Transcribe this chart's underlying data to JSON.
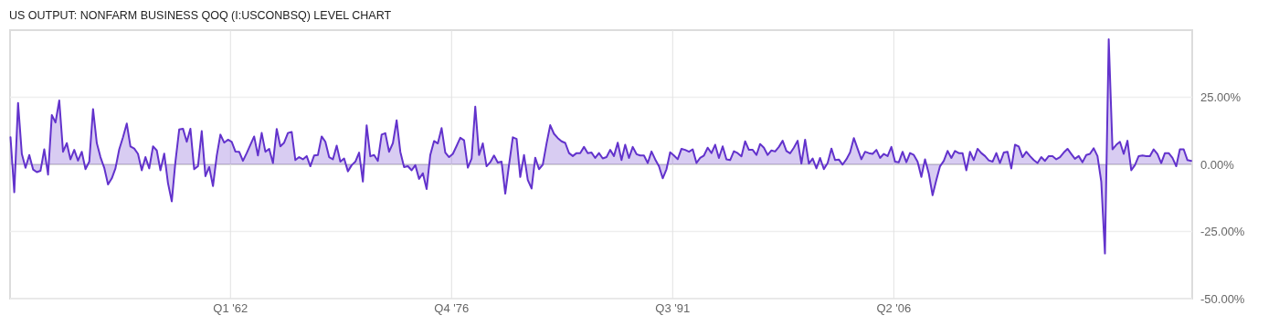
{
  "chart_data": {
    "type": "area",
    "title": "US OUTPUT: NONFARM BUSINESS QOQ (I:USCONBSQ) LEVEL CHART",
    "x": [
      "1947-05",
      "1947-08",
      "1947-11",
      "1948-02",
      "1948-05",
      "1948-08",
      "1948-11",
      "1949-02",
      "1949-05",
      "1949-08",
      "1949-11",
      "1950-02",
      "1950-05",
      "1950-08",
      "1950-11",
      "1951-02",
      "1951-05",
      "1951-08",
      "1951-11",
      "1952-02",
      "1952-05",
      "1952-08",
      "1952-11",
      "1953-02",
      "1953-05",
      "1953-08",
      "1953-11",
      "1954-02",
      "1954-05",
      "1954-08",
      "1954-11",
      "1955-02",
      "1955-05",
      "1955-08",
      "1955-11",
      "1956-02",
      "1956-05",
      "1956-08",
      "1956-11",
      "1957-02",
      "1957-05",
      "1957-08",
      "1957-11",
      "1958-02",
      "1958-05",
      "1958-08",
      "1958-11",
      "1959-02",
      "1959-05",
      "1959-08",
      "1959-11",
      "1960-02",
      "1960-05",
      "1960-08",
      "1960-11",
      "1961-02",
      "1961-05",
      "1961-08",
      "1961-11",
      "1962-02",
      "1962-05",
      "1962-08",
      "1962-11",
      "1963-02",
      "1963-05",
      "1963-08",
      "1963-11",
      "1964-02",
      "1964-05",
      "1964-08",
      "1964-11",
      "1965-02",
      "1965-05",
      "1965-08",
      "1965-11",
      "1966-02",
      "1966-05",
      "1966-08",
      "1966-11",
      "1967-02",
      "1967-05",
      "1967-08",
      "1967-11",
      "1968-02",
      "1968-05",
      "1968-08",
      "1968-11",
      "1969-02",
      "1969-05",
      "1969-08",
      "1969-11",
      "1970-02",
      "1970-05",
      "1970-08",
      "1970-11",
      "1971-02",
      "1971-05",
      "1971-08",
      "1971-11",
      "1972-02",
      "1972-05",
      "1972-08",
      "1972-11",
      "1973-02",
      "1973-05",
      "1973-08",
      "1973-11",
      "1974-02",
      "1974-05",
      "1974-08",
      "1974-11",
      "1975-02",
      "1975-05",
      "1975-08",
      "1975-11",
      "1976-02",
      "1976-05",
      "1976-08",
      "1976-11",
      "1977-02",
      "1977-05",
      "1977-08",
      "1977-11",
      "1978-02",
      "1978-05",
      "1978-08",
      "1978-11",
      "1979-02",
      "1979-05",
      "1979-08",
      "1979-11",
      "1980-02",
      "1980-05",
      "1980-08",
      "1980-11",
      "1981-02",
      "1981-05",
      "1981-08",
      "1981-11",
      "1982-02",
      "1982-05",
      "1982-08",
      "1982-11",
      "1983-02",
      "1983-05",
      "1983-08",
      "1983-11",
      "1984-02",
      "1984-05",
      "1984-08",
      "1984-11",
      "1985-02",
      "1985-05",
      "1985-08",
      "1985-11",
      "1986-02",
      "1986-05",
      "1986-08",
      "1986-11",
      "1987-02",
      "1987-05",
      "1987-08",
      "1987-11",
      "1988-02",
      "1988-05",
      "1988-08",
      "1988-11",
      "1989-02",
      "1989-05",
      "1989-08",
      "1989-11",
      "1990-02",
      "1990-05",
      "1990-08",
      "1990-11",
      "1991-02",
      "1991-05",
      "1991-08",
      "1991-11",
      "1992-02",
      "1992-05",
      "1992-08",
      "1992-11",
      "1993-02",
      "1993-05",
      "1993-08",
      "1993-11",
      "1994-02",
      "1994-05",
      "1994-08",
      "1994-11",
      "1995-02",
      "1995-05",
      "1995-08",
      "1995-11",
      "1996-02",
      "1996-05",
      "1996-08",
      "1996-11",
      "1997-02",
      "1997-05",
      "1997-08",
      "1997-11",
      "1998-02",
      "1998-05",
      "1998-08",
      "1998-11",
      "1999-02",
      "1999-05",
      "1999-08",
      "1999-11",
      "2000-02",
      "2000-05",
      "2000-08",
      "2000-11",
      "2001-02",
      "2001-05",
      "2001-08",
      "2001-11",
      "2002-02",
      "2002-05",
      "2002-08",
      "2002-11",
      "2003-02",
      "2003-05",
      "2003-08",
      "2003-11",
      "2004-02",
      "2004-05",
      "2004-08",
      "2004-11",
      "2005-02",
      "2005-05",
      "2005-08",
      "2005-11",
      "2006-02",
      "2006-05",
      "2006-08",
      "2006-11",
      "2007-02",
      "2007-05",
      "2007-08",
      "2007-11",
      "2008-02",
      "2008-05",
      "2008-08",
      "2008-11",
      "2009-02",
      "2009-05",
      "2009-08",
      "2009-11",
      "2010-02",
      "2010-05",
      "2010-08",
      "2010-11",
      "2011-02",
      "2011-05",
      "2011-08",
      "2011-11",
      "2012-02",
      "2012-05",
      "2012-08",
      "2012-11",
      "2013-02",
      "2013-05",
      "2013-08",
      "2013-11",
      "2014-02",
      "2014-05",
      "2014-08",
      "2014-11",
      "2015-02",
      "2015-05",
      "2015-08",
      "2015-11",
      "2016-02",
      "2016-05",
      "2016-08",
      "2016-11",
      "2017-02",
      "2017-05",
      "2017-08",
      "2017-11",
      "2018-02",
      "2018-05",
      "2018-08",
      "2018-11",
      "2019-02",
      "2019-05",
      "2019-08",
      "2019-11",
      "2020-02",
      "2020-05",
      "2020-08",
      "2020-11",
      "2021-02",
      "2021-05",
      "2021-08",
      "2021-11",
      "2022-02",
      "2022-05",
      "2022-08",
      "2022-11",
      "2023-02",
      "2023-05",
      "2023-08",
      "2023-11",
      "2024-02",
      "2024-05",
      "2024-08",
      "2024-11",
      "2025-02",
      "2025-05",
      "2025-08",
      "2025-11",
      "2026-02"
    ],
    "series": [
      {
        "color": "#6232cc",
        "values": [
          10.1,
          -10.4,
          22.9,
          3.9,
          -1.3,
          3.5,
          -1.9,
          -2.9,
          -2.4,
          5.6,
          -3.8,
          18.4,
          15.6,
          23.8,
          4.7,
          7.9,
          1.9,
          5.4,
          1.4,
          4.7,
          -1.8,
          1.0,
          20.6,
          7.9,
          2.7,
          -1.3,
          -7.5,
          -5.2,
          -1.5,
          5.6,
          10.1,
          15.2,
          6.7,
          5.9,
          3.9,
          -2.2,
          2.7,
          -1.5,
          6.7,
          5.2,
          -2.2,
          4.0,
          -7.0,
          -13.8,
          1.0,
          13.0,
          13.3,
          8.4,
          13.3,
          -1.8,
          -0.7,
          12.4,
          -4.4,
          -1.0,
          -8.1,
          3.3,
          11.1,
          8.1,
          9.2,
          8.4,
          4.8,
          4.7,
          1.3,
          4.2,
          7.3,
          10.4,
          3.3,
          11.7,
          4.7,
          5.8,
          0.5,
          13.2,
          6.7,
          8.1,
          11.7,
          12.1,
          1.6,
          2.7,
          1.9,
          3.1,
          -0.7,
          3.3,
          3.5,
          10.4,
          8.4,
          2.7,
          1.9,
          7.0,
          1.0,
          2.2,
          -2.6,
          -0.3,
          1.0,
          4.4,
          -6.4,
          14.5,
          3.0,
          3.5,
          1.3,
          11.1,
          11.6,
          4.7,
          7.9,
          16.4,
          4.7,
          -1.0,
          -0.7,
          -2.2,
          -0.3,
          -5.4,
          -3.3,
          -9.2,
          3.5,
          8.7,
          7.8,
          13.5,
          4.4,
          2.7,
          3.9,
          6.9,
          9.9,
          9.0,
          -1.2,
          2.2,
          21.5,
          3.5,
          7.8,
          -0.7,
          0.8,
          3.3,
          0.7,
          1.0,
          -10.9,
          -0.1,
          10.1,
          9.5,
          -4.7,
          3.5,
          -5.8,
          -9.0,
          2.5,
          -1.8,
          -0.1,
          7.8,
          14.6,
          11.4,
          9.8,
          8.6,
          8.0,
          4.2,
          3.1,
          4.2,
          4.2,
          6.5,
          4.2,
          4.4,
          2.4,
          4.2,
          2.2,
          2.7,
          5.4,
          3.1,
          8.1,
          1.6,
          7.3,
          2.4,
          6.5,
          3.8,
          3.3,
          3.3,
          0.5,
          4.8,
          1.9,
          -0.7,
          -5.2,
          -1.8,
          4.5,
          3.3,
          1.9,
          5.8,
          5.4,
          4.7,
          5.6,
          0.5,
          2.4,
          3.3,
          6.2,
          4.2,
          7.3,
          2.4,
          6.7,
          1.9,
          1.6,
          4.9,
          4.2,
          3.0,
          8.6,
          5.4,
          5.4,
          3.5,
          7.6,
          6.2,
          3.5,
          5.2,
          4.8,
          6.5,
          8.8,
          5.0,
          4.1,
          6.2,
          8.8,
          0.3,
          9.2,
          0.3,
          2.2,
          -1.5,
          2.4,
          -1.8,
          0.5,
          5.9,
          1.6,
          1.8,
          -0.1,
          1.9,
          4.4,
          9.8,
          5.8,
          1.9,
          4.7,
          4.2,
          3.9,
          5.4,
          2.4,
          3.9,
          3.1,
          6.5,
          1.0,
          0.8,
          4.7,
          0.8,
          4.2,
          3.5,
          1.0,
          -4.7,
          1.9,
          -3.5,
          -11.5,
          -5.8,
          -0.7,
          1.3,
          5.0,
          2.4,
          5.0,
          4.2,
          4.2,
          -2.2,
          4.7,
          1.6,
          5.8,
          4.2,
          3.1,
          1.5,
          1.0,
          4.2,
          0.5,
          4.4,
          4.7,
          -1.5,
          7.3,
          6.7,
          2.7,
          4.7,
          3.1,
          1.6,
          0.5,
          2.7,
          1.3,
          3.1,
          3.1,
          1.9,
          2.7,
          4.4,
          5.8,
          3.9,
          2.1,
          3.1,
          0.8,
          3.5,
          3.9,
          6.0,
          3.1,
          -6.4,
          -33.2,
          46.6,
          5.6,
          7.3,
          8.4,
          3.9,
          8.8,
          -2.2,
          -0.3,
          3.1,
          3.3,
          3.1,
          3.1,
          5.6,
          3.9,
          0.5,
          4.2,
          4.2,
          2.4,
          -0.7,
          5.6,
          5.6,
          1.6,
          1.3
        ]
      }
    ],
    "xlim": [
      "1947-04-20",
      "2026-02-25"
    ],
    "xticks": [
      {
        "value": "1962-01",
        "label": "Q1 '62"
      },
      {
        "value": "1976-10",
        "label": "Q4 '76"
      },
      {
        "value": "1991-07",
        "label": "Q3 '91"
      },
      {
        "value": "2006-04",
        "label": "Q2 '06"
      }
    ],
    "ylim": [
      -50,
      50
    ],
    "yticks": [
      {
        "value": -50,
        "label": "-50.00%"
      },
      {
        "value": -25,
        "label": "-25.00%"
      },
      {
        "value": 0,
        "label": "0.00%"
      },
      {
        "value": 25,
        "label": "25.00%"
      }
    ],
    "grid": true
  }
}
